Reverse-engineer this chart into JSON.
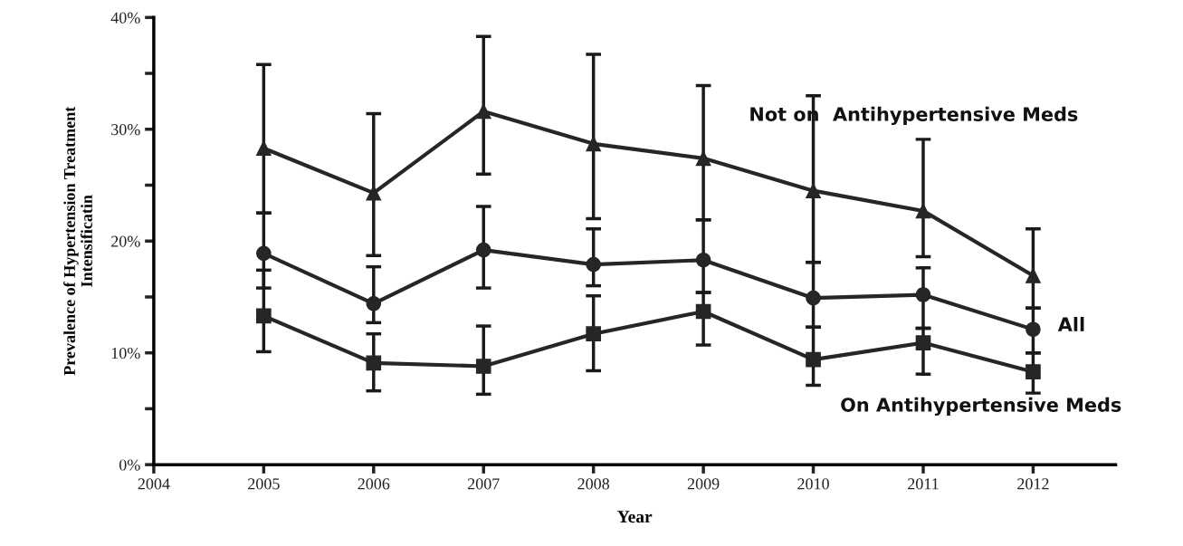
{
  "chart_data": {
    "type": "line",
    "xlabel": "Year",
    "ylabel": "Prevalence of Hypertension Treatment\nIntensificatin",
    "x": [
      2005,
      2006,
      2007,
      2008,
      2009,
      2010,
      2011,
      2012
    ],
    "series": [
      {
        "name": "Not on  Antihypertensive Meds",
        "color": "#262626",
        "marker": "triangle",
        "values": [
          28.3,
          24.3,
          31.6,
          28.7,
          27.4,
          24.5,
          22.7,
          16.9
        ],
        "errors": [
          [
            22.5,
            35.8
          ],
          [
            18.7,
            31.4
          ],
          [
            26.0,
            38.3
          ],
          [
            22.0,
            36.7
          ],
          [
            21.9,
            33.9
          ],
          [
            18.1,
            33.0
          ],
          [
            18.6,
            29.1
          ],
          [
            14.0,
            21.1
          ]
        ]
      },
      {
        "name": "All",
        "color": "#262626",
        "marker": "circle",
        "values": [
          18.9,
          14.4,
          19.2,
          17.9,
          18.3,
          14.9,
          15.2,
          12.1
        ],
        "errors": [
          [
            15.8,
            22.5
          ],
          [
            12.7,
            17.7
          ],
          [
            15.8,
            23.1
          ],
          [
            16.0,
            21.1
          ],
          [
            15.4,
            21.9
          ],
          [
            12.3,
            18.1
          ],
          [
            12.2,
            17.6
          ],
          [
            10.0,
            14.0
          ]
        ]
      },
      {
        "name": "On Antihypertensive Meds",
        "color": "#262626",
        "marker": "square",
        "values": [
          13.3,
          9.1,
          8.8,
          11.7,
          13.7,
          9.4,
          10.9,
          8.3
        ],
        "errors": [
          [
            10.1,
            17.4
          ],
          [
            6.6,
            11.7
          ],
          [
            6.3,
            12.4
          ],
          [
            8.4,
            15.1
          ],
          [
            10.7,
            15.4
          ],
          [
            7.1,
            12.3
          ],
          [
            8.1,
            12.2
          ],
          [
            6.4,
            10.0
          ]
        ]
      }
    ],
    "xlim": [
      2004,
      2012.75
    ],
    "xticks": [
      2004,
      2005,
      2006,
      2007,
      2008,
      2009,
      2010,
      2011,
      2012
    ],
    "ylim": [
      0,
      40
    ],
    "yticks": [
      {
        "value": 0,
        "label": "0%"
      },
      {
        "value": 5,
        "label": null
      },
      {
        "value": 10,
        "label": "10%"
      },
      {
        "value": 15,
        "label": null
      },
      {
        "value": 20,
        "label": "20%"
      },
      {
        "value": 25,
        "label": null
      },
      {
        "value": 30,
        "label": "30%"
      },
      {
        "value": 35,
        "label": null
      },
      {
        "value": 40,
        "label": "40%"
      }
    ],
    "grid": false,
    "legend": false,
    "line_style": "solid"
  }
}
